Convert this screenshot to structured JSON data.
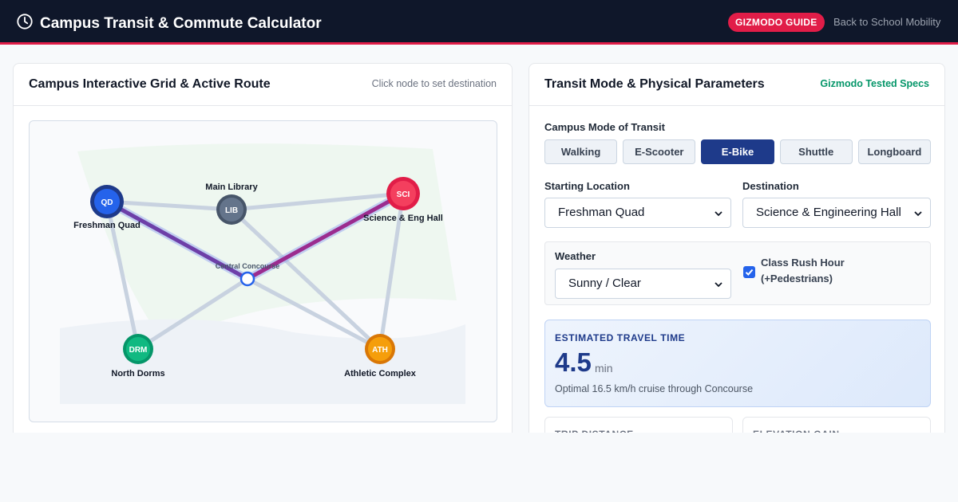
{
  "header": {
    "title": "Campus Transit & Commute Calculator",
    "badge": "GIZMODO GUIDE",
    "link": "Back to School Mobility"
  },
  "map_panel": {
    "title": "Campus Interactive Grid & Active Route",
    "hint": "Click node to set destination",
    "nodes": [
      {
        "code": "QD",
        "name": "Freshman Quad",
        "color": "#2563eb"
      },
      {
        "code": "LIB",
        "name": "Main Library",
        "color": "#475569"
      },
      {
        "code": "SCI",
        "name": "Science & Eng Hall",
        "color": "#e11d48"
      },
      {
        "name": "Central Concourse"
      },
      {
        "code": "DRM",
        "name": "North Dorms",
        "color": "#059669"
      },
      {
        "code": "ATH",
        "name": "Athletic Complex",
        "color": "#d97706"
      }
    ]
  },
  "params_panel": {
    "title": "Transit Mode & Physical Parameters",
    "note": "Gizmodo Tested Specs",
    "mode_label": "Campus Mode of Transit",
    "modes": [
      "Walking",
      "E-Scooter",
      "E-Bike",
      "Shuttle",
      "Longboard"
    ],
    "active_mode": "E-Bike",
    "start_label": "Starting Location",
    "start_value": "Freshman Quad",
    "dest_label": "Destination",
    "dest_value": "Science & Engineering Hall",
    "weather_label": "Weather",
    "weather_value": "Sunny / Clear",
    "rush_label_1": "Class Rush Hour",
    "rush_label_2": "(+Pedestrians)",
    "rush_checked": true,
    "estimate_label": "ESTIMATED TRAVEL TIME",
    "estimate_value": "4.5",
    "estimate_unit": "min",
    "estimate_note": "Optimal 16.5 km/h cruise through Concourse",
    "stat_1": "TRIP DISTANCE",
    "stat_2": "ELEVATION GAIN"
  }
}
